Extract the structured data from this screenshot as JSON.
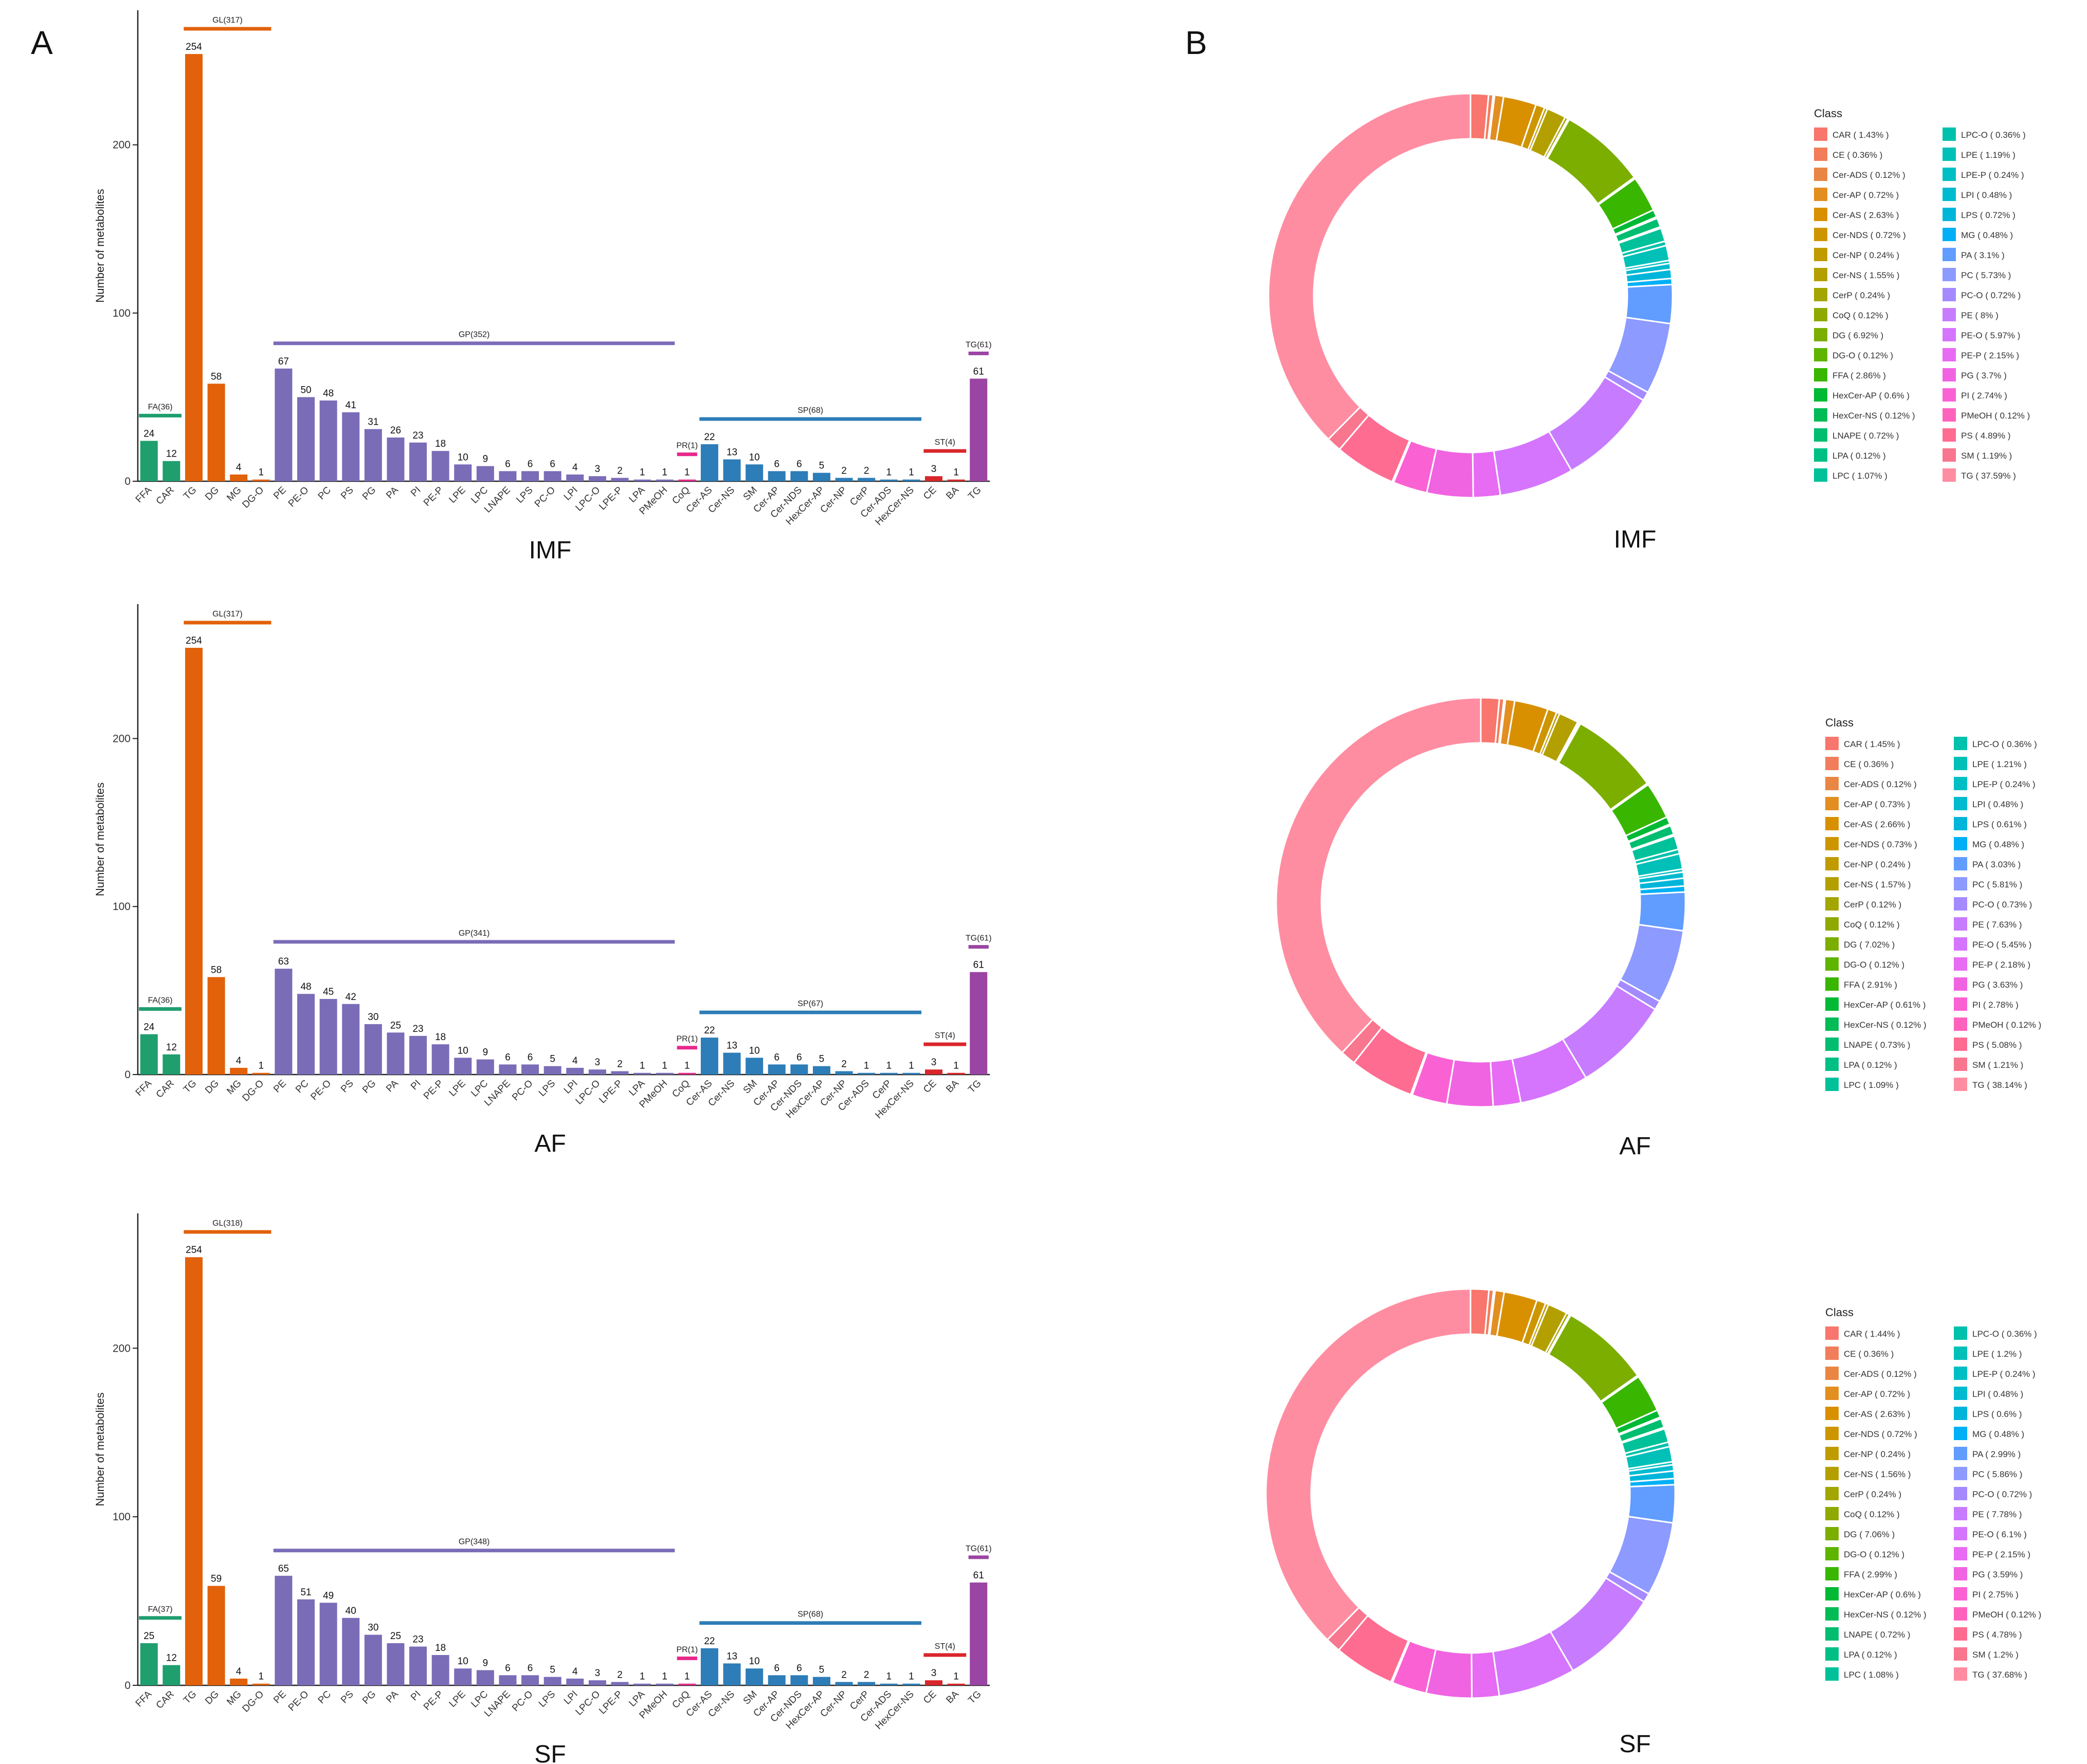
{
  "panel_labels": [
    "A",
    "B"
  ],
  "colors": {
    "FA": "#1f9e6e",
    "GL": "#e2610b",
    "GP": "#7b6cb8",
    "PR": "#e7298a",
    "SP": "#2d7db8",
    "ST": "#d9262b",
    "TG": "#9a45a3"
  },
  "chart_data": [
    {
      "type": "bar",
      "title": "IMF",
      "ylabel": "Number of metabolites",
      "ylim": [
        0,
        280
      ],
      "yticks": [
        0,
        100,
        200
      ],
      "categories": [
        "FFA",
        "CAR",
        "TG",
        "DG",
        "MG",
        "DG-O",
        "PE",
        "PE-O",
        "PC",
        "PS",
        "PG",
        "PA",
        "PI",
        "PE-P",
        "LPE",
        "LPC",
        "LNAPE",
        "LPS",
        "PC-O",
        "LPI",
        "LPC-O",
        "LPE-P",
        "LPA",
        "PMeOH",
        "CoQ",
        "Cer-AS",
        "Cer-NS",
        "SM",
        "Cer-AP",
        "Cer-NDS",
        "HexCer-AP",
        "Cer-NP",
        "CerP",
        "Cer-ADS",
        "HexCer-NS",
        "CE",
        "BA",
        "TG"
      ],
      "values": [
        24,
        12,
        254,
        58,
        4,
        1,
        67,
        50,
        48,
        41,
        31,
        26,
        23,
        18,
        10,
        9,
        6,
        6,
        6,
        4,
        3,
        2,
        1,
        1,
        1,
        22,
        13,
        10,
        6,
        6,
        5,
        2,
        2,
        1,
        1,
        3,
        1,
        61
      ],
      "value_labels": [
        "24",
        "12",
        "254",
        "58",
        "4",
        "1",
        "67",
        "50",
        "48",
        "41",
        "31",
        "26",
        "23",
        "18",
        "10",
        "9",
        "6",
        "6",
        "6",
        "4",
        "3",
        "2",
        "1",
        "1",
        "1",
        "22",
        "13",
        "10",
        "6",
        "6",
        "5",
        "2",
        "2",
        "1",
        "1",
        "3",
        "1",
        "61"
      ],
      "groups": [
        {
          "label": "FA(36)",
          "key": "FA",
          "start": 0,
          "end": 1,
          "line_value": 39
        },
        {
          "label": "GL(317)",
          "key": "GL",
          "start": 2,
          "end": 5,
          "line_value": 269
        },
        {
          "label": "GP(352)",
          "key": "GP",
          "start": 6,
          "end": 23,
          "line_value": 82
        },
        {
          "label": "PR(1)",
          "key": "PR",
          "start": 24,
          "end": 24,
          "line_value": 16
        },
        {
          "label": "SP(68)",
          "key": "SP",
          "start": 25,
          "end": 34,
          "line_value": 37
        },
        {
          "label": "ST(4)",
          "key": "ST",
          "start": 35,
          "end": 36,
          "line_value": 18
        },
        {
          "label": "TG(61)",
          "key": "TG",
          "start": 37,
          "end": 37,
          "line_value": 76
        }
      ]
    },
    {
      "type": "bar",
      "title": "AF",
      "ylabel": "Number of metabolites",
      "ylim": [
        0,
        280
      ],
      "yticks": [
        0,
        100,
        200
      ],
      "categories": [
        "FFA",
        "CAR",
        "TG",
        "DG",
        "MG",
        "DG-O",
        "PE",
        "PC",
        "PE-O",
        "PS",
        "PG",
        "PA",
        "PI",
        "PE-P",
        "LPE",
        "LPC",
        "LNAPE",
        "PC-O",
        "LPS",
        "LPI",
        "LPC-O",
        "LPE-P",
        "LPA",
        "PMeOH",
        "CoQ",
        "Cer-AS",
        "Cer-NS",
        "SM",
        "Cer-AP",
        "Cer-NDS",
        "HexCer-AP",
        "Cer-NP",
        "Cer-ADS",
        "CerP",
        "HexCer-NS",
        "CE",
        "BA",
        "TG"
      ],
      "values": [
        24,
        12,
        254,
        58,
        4,
        1,
        63,
        48,
        45,
        42,
        30,
        25,
        23,
        18,
        10,
        9,
        6,
        6,
        5,
        4,
        3,
        2,
        1,
        1,
        1,
        22,
        13,
        10,
        6,
        6,
        5,
        2,
        1,
        1,
        1,
        3,
        1,
        61
      ],
      "value_labels": [
        "24",
        "12",
        "254",
        "58",
        "4",
        "1",
        "63",
        "48",
        "45",
        "42",
        "30",
        "25",
        "23",
        "18",
        "10",
        "9",
        "6",
        "6",
        "5",
        "4",
        "3",
        "2",
        "1",
        "1",
        "1",
        "22",
        "13",
        "10",
        "6",
        "6",
        "5",
        "2",
        "1",
        "1",
        "1",
        "3",
        "1",
        "61"
      ],
      "groups": [
        {
          "label": "FA(36)",
          "key": "FA",
          "start": 0,
          "end": 1,
          "line_value": 39
        },
        {
          "label": "GL(317)",
          "key": "GL",
          "start": 2,
          "end": 5,
          "line_value": 269
        },
        {
          "label": "GP(341)",
          "key": "GP",
          "start": 6,
          "end": 23,
          "line_value": 79
        },
        {
          "label": "PR(1)",
          "key": "PR",
          "start": 24,
          "end": 24,
          "line_value": 16
        },
        {
          "label": "SP(67)",
          "key": "SP",
          "start": 25,
          "end": 34,
          "line_value": 37
        },
        {
          "label": "ST(4)",
          "key": "ST",
          "start": 35,
          "end": 36,
          "line_value": 18
        },
        {
          "label": "TG(61)",
          "key": "TG",
          "start": 37,
          "end": 37,
          "line_value": 76
        }
      ]
    },
    {
      "type": "bar",
      "title": "SF",
      "ylabel": "Number of metabolites",
      "ylim": [
        0,
        280
      ],
      "yticks": [
        0,
        100,
        200
      ],
      "categories": [
        "FFA",
        "CAR",
        "TG",
        "DG",
        "MG",
        "DG-O",
        "PE",
        "PE-O",
        "PC",
        "PS",
        "PG",
        "PA",
        "PI",
        "PE-P",
        "LPE",
        "LPC",
        "LNAPE",
        "PC-O",
        "LPS",
        "LPI",
        "LPC-O",
        "LPE-P",
        "LPA",
        "PMeOH",
        "CoQ",
        "Cer-AS",
        "Cer-NS",
        "SM",
        "Cer-AP",
        "Cer-NDS",
        "HexCer-AP",
        "Cer-NP",
        "CerP",
        "Cer-ADS",
        "HexCer-NS",
        "CE",
        "BA",
        "TG"
      ],
      "values": [
        25,
        12,
        254,
        59,
        4,
        1,
        65,
        51,
        49,
        40,
        30,
        25,
        23,
        18,
        10,
        9,
        6,
        6,
        5,
        4,
        3,
        2,
        1,
        1,
        1,
        22,
        13,
        10,
        6,
        6,
        5,
        2,
        2,
        1,
        1,
        3,
        1,
        61
      ],
      "value_labels": [
        "25",
        "12",
        "254",
        "59",
        "4",
        "1",
        "65",
        "51",
        "49",
        "40",
        "30",
        "25",
        "23",
        "18",
        "10",
        "9",
        "6",
        "6",
        "5",
        "4",
        "3",
        "2",
        "1",
        "1",
        "1",
        "22",
        "13",
        "10",
        "6",
        "6",
        "5",
        "2",
        "2",
        "1",
        "1",
        "3",
        "1",
        "61"
      ],
      "groups": [
        {
          "label": "FA(37)",
          "key": "FA",
          "start": 0,
          "end": 1,
          "line_value": 40
        },
        {
          "label": "GL(318)",
          "key": "GL",
          "start": 2,
          "end": 5,
          "line_value": 269
        },
        {
          "label": "GP(348)",
          "key": "GP",
          "start": 6,
          "end": 23,
          "line_value": 80
        },
        {
          "label": "PR(1)",
          "key": "PR",
          "start": 24,
          "end": 24,
          "line_value": 16
        },
        {
          "label": "SP(68)",
          "key": "SP",
          "start": 25,
          "end": 34,
          "line_value": 37
        },
        {
          "label": "ST(4)",
          "key": "ST",
          "start": 35,
          "end": 36,
          "line_value": 18
        },
        {
          "label": "TG(61)",
          "key": "TG",
          "start": 37,
          "end": 37,
          "line_value": 76
        }
      ]
    },
    {
      "type": "pie",
      "title": "IMF",
      "legend_title": "Class",
      "labels": [
        "CAR",
        "CE",
        "Cer-ADS",
        "Cer-AP",
        "Cer-AS",
        "Cer-NDS",
        "Cer-NP",
        "Cer-NS",
        "CerP",
        "CoQ",
        "DG",
        "DG-O",
        "FFA",
        "HexCer-AP",
        "HexCer-NS",
        "LNAPE",
        "LPA",
        "LPC",
        "LPC-O",
        "LPE",
        "LPE-P",
        "LPI",
        "LPS",
        "MG",
        "PA",
        "PC",
        "PC-O",
        "PE",
        "PE-O",
        "PE-P",
        "PG",
        "PI",
        "PMeOH",
        "PS",
        "SM",
        "TG"
      ],
      "values": [
        1.43,
        0.36,
        0.12,
        0.72,
        2.63,
        0.72,
        0.24,
        1.55,
        0.24,
        0.12,
        6.92,
        0.12,
        2.86,
        0.6,
        0.12,
        0.72,
        0.12,
        1.07,
        0.36,
        1.19,
        0.24,
        0.48,
        0.72,
        0.48,
        3.1,
        5.73,
        0.72,
        8,
        5.97,
        2.15,
        3.7,
        2.74,
        0.12,
        4.89,
        1.19,
        37.59
      ],
      "legend_labels": [
        "CAR ( 1.43% )",
        "CE ( 0.36% )",
        "Cer-ADS ( 0.12% )",
        "Cer-AP ( 0.72% )",
        "Cer-AS ( 2.63% )",
        "Cer-NDS ( 0.72% )",
        "Cer-NP ( 0.24% )",
        "Cer-NS ( 1.55% )",
        "CerP ( 0.24% )",
        "CoQ ( 0.12% )",
        "DG ( 6.92% )",
        "DG-O ( 0.12% )",
        "FFA ( 2.86% )",
        "HexCer-AP ( 0.6% )",
        "HexCer-NS ( 0.12% )",
        "LNAPE ( 0.72% )",
        "LPA ( 0.12% )",
        "LPC ( 1.07% )",
        "LPC-O ( 0.36% )",
        "LPE ( 1.19% )",
        "LPE-P ( 0.24% )",
        "LPI ( 0.48% )",
        "LPS ( 0.72% )",
        "MG ( 0.48% )",
        "PA ( 3.1% )",
        "PC ( 5.73% )",
        "PC-O ( 0.72% )",
        "PE ( 8% )",
        "PE-O ( 5.97% )",
        "PE-P ( 2.15% )",
        "PG ( 3.7% )",
        "PI ( 2.74% )",
        "PMeOH ( 0.12% )",
        "PS ( 4.89% )",
        "SM ( 1.19% )",
        "TG ( 37.59% )"
      ]
    },
    {
      "type": "pie",
      "title": "AF",
      "legend_title": "Class",
      "labels": [
        "CAR",
        "CE",
        "Cer-ADS",
        "Cer-AP",
        "Cer-AS",
        "Cer-NDS",
        "Cer-NP",
        "Cer-NS",
        "CerP",
        "CoQ",
        "DG",
        "DG-O",
        "FFA",
        "HexCer-AP",
        "HexCer-NS",
        "LNAPE",
        "LPA",
        "LPC",
        "LPC-O",
        "LPE",
        "LPE-P",
        "LPI",
        "LPS",
        "MG",
        "PA",
        "PC",
        "PC-O",
        "PE",
        "PE-O",
        "PE-P",
        "PG",
        "PI",
        "PMeOH",
        "PS",
        "SM",
        "TG"
      ],
      "values": [
        1.45,
        0.36,
        0.12,
        0.73,
        2.66,
        0.73,
        0.24,
        1.57,
        0.12,
        0.12,
        7.02,
        0.12,
        2.91,
        0.61,
        0.12,
        0.73,
        0.12,
        1.09,
        0.36,
        1.21,
        0.24,
        0.48,
        0.61,
        0.48,
        3.03,
        5.81,
        0.73,
        7.63,
        5.45,
        2.18,
        3.63,
        2.78,
        0.12,
        5.08,
        1.21,
        38.14
      ],
      "legend_labels": [
        "CAR ( 1.45% )",
        "CE ( 0.36% )",
        "Cer-ADS ( 0.12% )",
        "Cer-AP ( 0.73% )",
        "Cer-AS ( 2.66% )",
        "Cer-NDS ( 0.73% )",
        "Cer-NP ( 0.24% )",
        "Cer-NS ( 1.57% )",
        "CerP ( 0.12% )",
        "CoQ ( 0.12% )",
        "DG ( 7.02% )",
        "DG-O ( 0.12% )",
        "FFA ( 2.91% )",
        "HexCer-AP ( 0.61% )",
        "HexCer-NS ( 0.12% )",
        "LNAPE ( 0.73% )",
        "LPA ( 0.12% )",
        "LPC ( 1.09% )",
        "LPC-O ( 0.36% )",
        "LPE ( 1.21% )",
        "LPE-P ( 0.24% )",
        "LPI ( 0.48% )",
        "LPS ( 0.61% )",
        "MG ( 0.48% )",
        "PA ( 3.03% )",
        "PC ( 5.81% )",
        "PC-O ( 0.73% )",
        "PE ( 7.63% )",
        "PE-O ( 5.45% )",
        "PE-P ( 2.18% )",
        "PG ( 3.63% )",
        "PI ( 2.78% )",
        "PMeOH ( 0.12% )",
        "PS ( 5.08% )",
        "SM ( 1.21% )",
        "TG ( 38.14% )"
      ]
    },
    {
      "type": "pie",
      "title": "SF",
      "legend_title": "Class",
      "labels": [
        "CAR",
        "CE",
        "Cer-ADS",
        "Cer-AP",
        "Cer-AS",
        "Cer-NDS",
        "Cer-NP",
        "Cer-NS",
        "CerP",
        "CoQ",
        "DG",
        "DG-O",
        "FFA",
        "HexCer-AP",
        "HexCer-NS",
        "LNAPE",
        "LPA",
        "LPC",
        "LPC-O",
        "LPE",
        "LPE-P",
        "LPI",
        "LPS",
        "MG",
        "PA",
        "PC",
        "PC-O",
        "PE",
        "PE-O",
        "PE-P",
        "PG",
        "PI",
        "PMeOH",
        "PS",
        "SM",
        "TG"
      ],
      "values": [
        1.44,
        0.36,
        0.12,
        0.72,
        2.63,
        0.72,
        0.24,
        1.56,
        0.24,
        0.12,
        7.06,
        0.12,
        2.99,
        0.6,
        0.12,
        0.72,
        0.12,
        1.08,
        0.36,
        1.2,
        0.24,
        0.48,
        0.6,
        0.48,
        2.99,
        5.86,
        0.72,
        7.78,
        6.1,
        2.15,
        3.59,
        2.75,
        0.12,
        4.78,
        1.2,
        37.68
      ],
      "legend_labels": [
        "CAR ( 1.44% )",
        "CE ( 0.36% )",
        "Cer-ADS ( 0.12% )",
        "Cer-AP ( 0.72% )",
        "Cer-AS ( 2.63% )",
        "Cer-NDS ( 0.72% )",
        "Cer-NP ( 0.24% )",
        "Cer-NS ( 1.56% )",
        "CerP ( 0.24% )",
        "CoQ ( 0.12% )",
        "DG ( 7.06% )",
        "DG-O ( 0.12% )",
        "FFA ( 2.99% )",
        "HexCer-AP ( 0.6% )",
        "HexCer-NS ( 0.12% )",
        "LNAPE ( 0.72% )",
        "LPA ( 0.12% )",
        "LPC ( 1.08% )",
        "LPC-O ( 0.36% )",
        "LPE ( 1.2% )",
        "LPE-P ( 0.24% )",
        "LPI ( 0.48% )",
        "LPS ( 0.6% )",
        "MG ( 0.48% )",
        "PA ( 2.99% )",
        "PC ( 5.86% )",
        "PC-O ( 0.72% )",
        "PE ( 7.78% )",
        "PE-O ( 6.1% )",
        "PE-P ( 2.15% )",
        "PG ( 3.59% )",
        "PI ( 2.75% )",
        "PMeOH ( 0.12% )",
        "PS ( 4.78% )",
        "SM ( 1.2% )",
        "TG ( 37.68% )"
      ]
    }
  ],
  "class_colors": [
    "#f8766d",
    "#f17d5b",
    "#e98644",
    "#e28e21",
    "#d89000",
    "#cd9600",
    "#c09b00",
    "#b3a000",
    "#a3a500",
    "#8fa900",
    "#7cae00",
    "#5fb400",
    "#39b600",
    "#00b934",
    "#00bb56",
    "#00bd70",
    "#00bf85",
    "#00c19a",
    "#00c1ab",
    "#00c0b8",
    "#00bfc4",
    "#00bbd0",
    "#00b5da",
    "#00b0f6",
    "#619cff",
    "#8d9aff",
    "#a58aff",
    "#c77cff",
    "#d575fe",
    "#e76bf3",
    "#f064e2",
    "#fa62d4",
    "#ff62bc",
    "#ff6c91",
    "#f8768e",
    "#ff8da1"
  ]
}
